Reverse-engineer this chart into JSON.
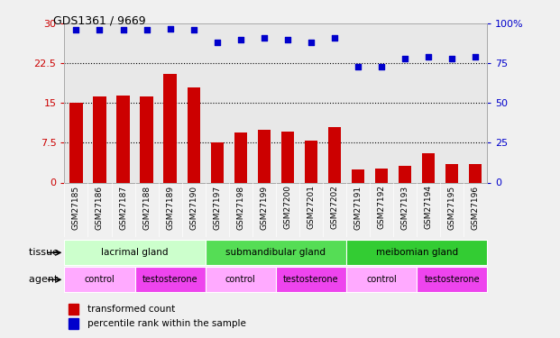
{
  "title": "GDS1361 / 9669",
  "samples": [
    "GSM27185",
    "GSM27186",
    "GSM27187",
    "GSM27188",
    "GSM27189",
    "GSM27190",
    "GSM27197",
    "GSM27198",
    "GSM27199",
    "GSM27200",
    "GSM27201",
    "GSM27202",
    "GSM27191",
    "GSM27192",
    "GSM27193",
    "GSM27194",
    "GSM27195",
    "GSM27196"
  ],
  "bar_values": [
    15.0,
    16.2,
    16.5,
    16.2,
    20.5,
    18.0,
    7.5,
    9.5,
    10.0,
    9.7,
    7.9,
    10.5,
    2.5,
    2.7,
    3.2,
    5.5,
    3.5,
    3.5
  ],
  "dot_values": [
    96,
    96,
    96,
    96,
    97,
    96,
    88,
    90,
    91,
    90,
    88,
    91,
    73,
    73,
    78,
    79,
    78,
    79
  ],
  "bar_color": "#cc0000",
  "dot_color": "#0000cc",
  "ylim_left": [
    0,
    30
  ],
  "ylim_right": [
    0,
    100
  ],
  "yticks_left": [
    0,
    7.5,
    15,
    22.5,
    30
  ],
  "ytick_labels_left": [
    "0",
    "7.5",
    "15",
    "22.5",
    "30"
  ],
  "yticks_right": [
    0,
    25,
    50,
    75,
    100
  ],
  "ytick_labels_right": [
    "0",
    "25",
    "50",
    "75",
    "100%"
  ],
  "hlines": [
    7.5,
    15,
    22.5
  ],
  "tissue_groups": [
    {
      "label": "lacrimal gland",
      "start": 0,
      "end": 6,
      "color": "#ccffcc"
    },
    {
      "label": "submandibular gland",
      "start": 6,
      "end": 12,
      "color": "#55dd55"
    },
    {
      "label": "meibomian gland",
      "start": 12,
      "end": 18,
      "color": "#33cc33"
    }
  ],
  "agent_groups": [
    {
      "label": "control",
      "start": 0,
      "end": 3,
      "color": "#ffaaff"
    },
    {
      "label": "testosterone",
      "start": 3,
      "end": 6,
      "color": "#ee44ee"
    },
    {
      "label": "control",
      "start": 6,
      "end": 9,
      "color": "#ffaaff"
    },
    {
      "label": "testosterone",
      "start": 9,
      "end": 12,
      "color": "#ee44ee"
    },
    {
      "label": "control",
      "start": 12,
      "end": 15,
      "color": "#ffaaff"
    },
    {
      "label": "testosterone",
      "start": 15,
      "end": 18,
      "color": "#ee44ee"
    }
  ],
  "tissue_label": "tissue",
  "agent_label": "agent",
  "legend_bar": "transformed count",
  "legend_dot": "percentile rank within the sample",
  "bar_width": 0.55,
  "background_color": "#f0f0f0",
  "plot_bg_color": "#e8e8e8",
  "xtick_bg_color": "#d0d0d0"
}
